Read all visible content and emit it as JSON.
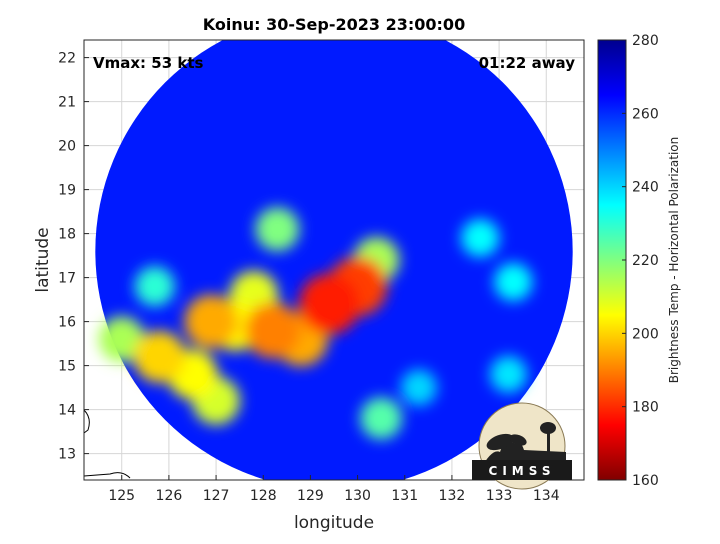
{
  "chart_data": {
    "type": "heatmap",
    "title": "Koinu: 30-Sep-2023 23:00:00",
    "xlabel": "longitude",
    "ylabel": "latitude",
    "xlim": [
      124.2,
      134.8
    ],
    "ylim": [
      12.4,
      22.4
    ],
    "xticks": [
      125,
      126,
      127,
      128,
      129,
      130,
      131,
      132,
      133,
      134
    ],
    "yticks": [
      13,
      14,
      15,
      16,
      17,
      18,
      19,
      20,
      21,
      22
    ],
    "grid": true,
    "annotations": {
      "vmax": "Vmax: 53 kts",
      "away": "01:22 away"
    },
    "colorbar": {
      "label": "Brightness Temp - Horizontal Polarization",
      "range": [
        160,
        280
      ],
      "ticks": [
        160,
        180,
        200,
        220,
        240,
        260,
        280
      ],
      "colormap": [
        "#800000",
        "#ff0000",
        "#ff8000",
        "#ffff00",
        "#80ff80",
        "#00ffff",
        "#0080ff",
        "#0000ff",
        "#00008f"
      ]
    },
    "swath": {
      "center": [
        129.5,
        17.6
      ],
      "radius_deg": 5.5,
      "background_value": 262
    },
    "features": [
      {
        "lon": 129.4,
        "lat": 16.4,
        "value": 178
      },
      {
        "lon": 130.0,
        "lat": 16.8,
        "value": 182
      },
      {
        "lon": 128.2,
        "lat": 15.8,
        "value": 190
      },
      {
        "lon": 128.8,
        "lat": 15.6,
        "value": 195
      },
      {
        "lon": 127.4,
        "lat": 15.9,
        "value": 205
      },
      {
        "lon": 126.5,
        "lat": 14.8,
        "value": 205
      },
      {
        "lon": 125.8,
        "lat": 15.2,
        "value": 200
      },
      {
        "lon": 126.9,
        "lat": 16.0,
        "value": 195
      },
      {
        "lon": 127.0,
        "lat": 14.2,
        "value": 210
      },
      {
        "lon": 127.8,
        "lat": 16.6,
        "value": 208
      },
      {
        "lon": 130.4,
        "lat": 17.4,
        "value": 215
      },
      {
        "lon": 128.3,
        "lat": 18.1,
        "value": 220
      },
      {
        "lon": 130.5,
        "lat": 13.8,
        "value": 225
      },
      {
        "lon": 132.6,
        "lat": 17.9,
        "value": 235
      },
      {
        "lon": 133.3,
        "lat": 16.9,
        "value": 235
      },
      {
        "lon": 133.2,
        "lat": 14.8,
        "value": 238
      },
      {
        "lon": 125.0,
        "lat": 15.6,
        "value": 215
      },
      {
        "lon": 125.7,
        "lat": 16.8,
        "value": 230
      },
      {
        "lon": 131.3,
        "lat": 14.5,
        "value": 240
      }
    ]
  },
  "logo": {
    "text": "CIMSS"
  }
}
